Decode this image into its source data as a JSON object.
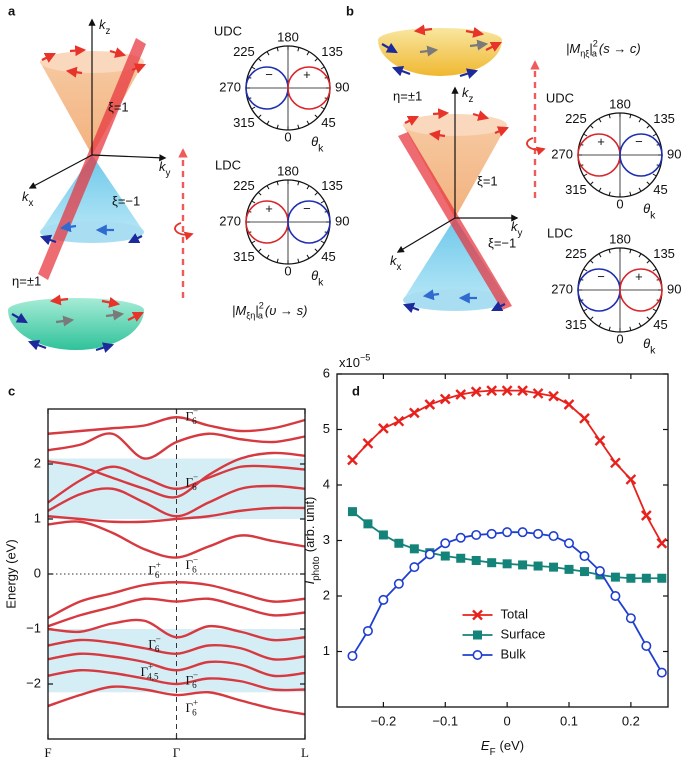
{
  "panel_labels": [
    "a",
    "b",
    "c",
    "d"
  ],
  "panel_a": {
    "axes": {
      "kz": [
        "k",
        "z"
      ],
      "ky": [
        "k",
        "y"
      ],
      "kx": [
        "k",
        "x"
      ]
    },
    "xi_upper": "ξ=1",
    "xi_lower": "ξ=−1",
    "eta": "η=±1",
    "polar_plots": [
      {
        "title": "UDC",
        "angle_ticks": [
          180,
          135,
          90,
          45,
          0,
          315,
          270,
          225
        ],
        "signs": [
          "−",
          "+"
        ],
        "lobe_colors": [
          "#1f2fb0",
          "#d8262a"
        ],
        "theta": [
          "θ",
          "k"
        ]
      },
      {
        "title": "LDC",
        "angle_ticks": [
          180,
          135,
          90,
          45,
          0,
          315,
          270,
          225
        ],
        "signs": [
          "+",
          "−"
        ],
        "lobe_colors": [
          "#d8262a",
          "#1f2fb0"
        ],
        "theta": [
          "θ",
          "k"
        ]
      }
    ],
    "formula": {
      "lead": "|M",
      "sub": "ξη",
      "close": "|",
      "sup": "2",
      "sub2": "a",
      "tail": "(υ → s)"
    }
  },
  "panel_b": {
    "axes": {
      "kz": [
        "k",
        "z"
      ],
      "ky": [
        "k",
        "y"
      ],
      "kx": [
        "k",
        "x"
      ]
    },
    "xi_upper": "ξ=1",
    "xi_lower": "ξ=−1",
    "eta": "η=±1",
    "polar_plots": [
      {
        "title": "UDC",
        "angle_ticks": [
          180,
          135,
          90,
          45,
          0,
          315,
          270,
          225
        ],
        "signs": [
          "+",
          "−"
        ],
        "lobe_colors": [
          "#d8262a",
          "#1f2fb0"
        ],
        "theta": [
          "θ",
          "k"
        ]
      },
      {
        "title": "LDC",
        "angle_ticks": [
          180,
          135,
          90,
          45,
          0,
          315,
          270,
          225
        ],
        "signs": [
          "−",
          "+"
        ],
        "lobe_colors": [
          "#1f2fb0",
          "#d8262a"
        ],
        "theta": [
          "θ",
          "k"
        ]
      }
    ],
    "formula": {
      "lead": "|M",
      "sub": "ηξ",
      "close": "|",
      "sup": "2",
      "sub2": "a",
      "tail": "(s → c)"
    }
  },
  "chart_data": [
    {
      "type": "line",
      "smooth": true,
      "ylabel": "Energy (eV)",
      "x": [
        0,
        0.25,
        0.5,
        0.75,
        1,
        1.25,
        1.5,
        1.75,
        2
      ],
      "xlim": [
        0,
        2
      ],
      "xticks": [
        {
          "value": 0,
          "label": "F"
        },
        {
          "value": 1,
          "label": "Γ"
        },
        {
          "value": 2,
          "label": "L"
        }
      ],
      "xgrid": "dashed",
      "ylim": [
        -3,
        3
      ],
      "yticks": [
        {
          "value": -2,
          "label": "−2"
        },
        {
          "value": -1,
          "label": "−1"
        },
        0,
        1,
        2
      ],
      "hline": {
        "y": 0,
        "style": "dotted"
      },
      "color": "#d63a40",
      "shaded_ranges": [
        [
          1,
          2.1
        ],
        [
          -2.15,
          -1
        ]
      ],
      "shade_color": "#d5eef6",
      "series": [
        {
          "values": [
            0.9,
            0.95,
            0.75,
            0.45,
            0.3,
            0.5,
            0.7,
            0.6,
            0.5
          ]
        },
        {
          "values": [
            1.05,
            1.0,
            0.95,
            0.95,
            1.0,
            1.05,
            1.15,
            1.2,
            1.2
          ]
        },
        {
          "values": [
            1.15,
            1.45,
            1.55,
            1.3,
            1.05,
            1.3,
            1.55,
            1.6,
            1.55
          ]
        },
        {
          "values": [
            1.3,
            1.7,
            1.95,
            1.75,
            1.55,
            1.75,
            1.95,
            1.95,
            1.9
          ]
        },
        {
          "values": [
            2.05,
            1.95,
            1.75,
            1.55,
            1.4,
            1.8,
            2.1,
            2.2,
            2.15
          ]
        },
        {
          "values": [
            2.25,
            2.35,
            2.55,
            2.1,
            2.4,
            2.55,
            2.45,
            2.4,
            2.5
          ]
        },
        {
          "values": [
            2.55,
            2.6,
            2.65,
            2.7,
            2.85,
            2.7,
            2.6,
            2.65,
            2.8
          ]
        },
        {
          "values": [
            -0.8,
            -0.5,
            -0.35,
            -0.2,
            -0.15,
            -0.2,
            -0.35,
            -0.5,
            -0.45
          ]
        },
        {
          "values": [
            -0.95,
            -0.75,
            -0.6,
            -0.45,
            -0.5,
            -0.45,
            -0.6,
            -0.75,
            -0.7
          ]
        },
        {
          "values": [
            -1.0,
            -1.05,
            -0.9,
            -0.85,
            -1.15,
            -0.95,
            -1.05,
            -1.2,
            -1.15
          ]
        },
        {
          "values": [
            -1.3,
            -1.2,
            -1.25,
            -1.35,
            -1.45,
            -1.3,
            -1.35,
            -1.55,
            -1.5
          ]
        },
        {
          "values": [
            -1.55,
            -1.45,
            -1.5,
            -1.6,
            -1.75,
            -1.6,
            -1.65,
            -1.85,
            -1.8
          ]
        },
        {
          "values": [
            -1.85,
            -1.75,
            -1.8,
            -1.9,
            -2.0,
            -1.9,
            -1.95,
            -2.1,
            -2.1
          ]
        },
        {
          "values": [
            -2.4,
            -2.2,
            -2.05,
            -2.1,
            -2.2,
            -2.15,
            -2.3,
            -2.45,
            -2.55
          ]
        }
      ],
      "annotations": [
        {
          "text": "Γ",
          "sup": "−",
          "sub": "6",
          "x": 1.07,
          "y": 2.85
        },
        {
          "text": "Γ",
          "sup": "−",
          "sub": "6",
          "x": 1.07,
          "y": 1.65
        },
        {
          "text": "Γ",
          "sup": "−",
          "sub": "6",
          "x": 1.07,
          "y": 0.15
        },
        {
          "text": "Γ",
          "sup": "+",
          "sub": "6",
          "x": 0.78,
          "y": 0.05
        },
        {
          "text": "Γ",
          "sup": "−",
          "sub": "6",
          "x": 0.78,
          "y": -1.3
        },
        {
          "text": "Γ",
          "sup": "+",
          "sub": "4,5",
          "x": 0.72,
          "y": -1.8
        },
        {
          "text": "Γ",
          "sup": "−",
          "sub": "6",
          "x": 1.07,
          "y": -1.95
        },
        {
          "text": "Γ",
          "sup": "+",
          "sub": "6",
          "x": 1.07,
          "y": -2.45
        }
      ]
    },
    {
      "type": "line",
      "ylabel": {
        "main": "I",
        "sub": "photo",
        "unit": "(arb. unit)"
      },
      "xlabel": {
        "main": "E",
        "sub": "F",
        "unit": "(eV)"
      },
      "y_multiplier": {
        "base": "x10",
        "exp": "−5"
      },
      "x": [
        -0.25,
        -0.225,
        -0.2,
        -0.175,
        -0.15,
        -0.125,
        -0.1,
        -0.075,
        -0.05,
        -0.025,
        0,
        0.025,
        0.05,
        0.075,
        0.1,
        0.125,
        0.15,
        0.175,
        0.2,
        0.225,
        0.25
      ],
      "xlim": [
        -0.275,
        0.26
      ],
      "xticks": [
        {
          "value": -0.2,
          "label": "−0.2"
        },
        {
          "value": -0.1,
          "label": "−0.1"
        },
        0,
        0.1,
        0.2
      ],
      "ylim": [
        0,
        6
      ],
      "yticks": [
        1,
        2,
        3,
        4,
        5,
        6
      ],
      "legend": "lower center",
      "series": [
        {
          "name": "Total",
          "color": "#e8211c",
          "marker": "x",
          "values": [
            4.45,
            4.75,
            5.02,
            5.15,
            5.3,
            5.45,
            5.55,
            5.63,
            5.68,
            5.7,
            5.7,
            5.7,
            5.65,
            5.6,
            5.45,
            5.2,
            4.8,
            4.4,
            4.1,
            3.45,
            2.95
          ]
        },
        {
          "name": "Surface",
          "color": "#14837a",
          "marker": "s",
          "values": [
            3.52,
            3.3,
            3.1,
            2.95,
            2.85,
            2.78,
            2.72,
            2.68,
            2.64,
            2.6,
            2.58,
            2.56,
            2.54,
            2.52,
            2.48,
            2.44,
            2.38,
            2.34,
            2.32,
            2.32,
            2.32
          ]
        },
        {
          "name": "Bulk",
          "color": "#1f3fd0",
          "marker": "o",
          "values": [
            0.92,
            1.37,
            1.93,
            2.22,
            2.52,
            2.75,
            2.95,
            3.05,
            3.1,
            3.12,
            3.15,
            3.15,
            3.12,
            3.08,
            2.95,
            2.72,
            2.45,
            2.0,
            1.6,
            1.1,
            0.62
          ]
        }
      ]
    }
  ]
}
